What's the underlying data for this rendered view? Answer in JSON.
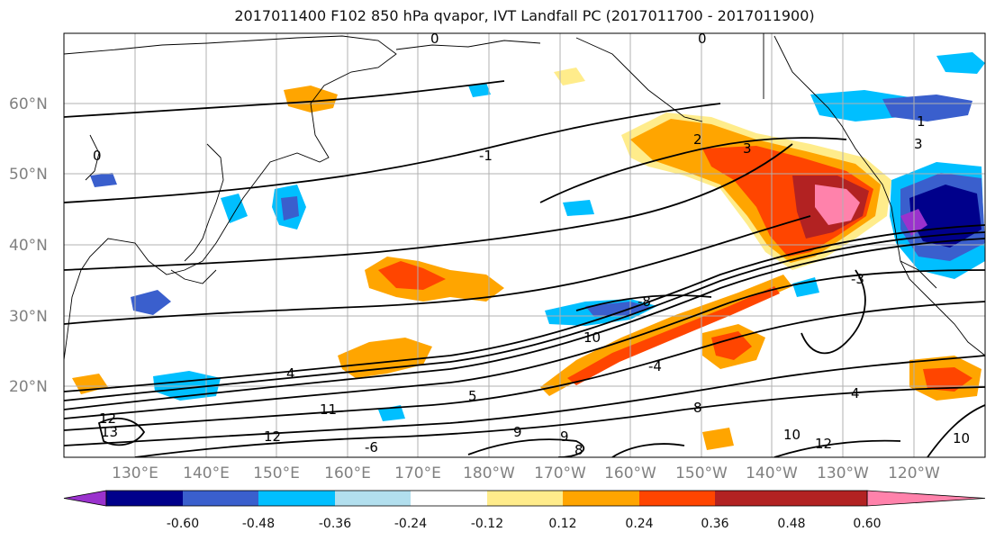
{
  "title": "2017011400 F102 850 hPa qvapor, IVT Landfall PC (2017011700 - 2017011900)",
  "map": {
    "lat_labels": [
      "60°N",
      "50°N",
      "40°N",
      "30°N",
      "20°N"
    ],
    "lon_labels": [
      "130°E",
      "140°E",
      "150°E",
      "160°E",
      "170°E",
      "180°W",
      "170°W",
      "160°W",
      "150°W",
      "140°W",
      "130°W",
      "120°W"
    ],
    "contour_labels": [
      "0",
      "0",
      "0",
      "-1",
      "1",
      "2",
      "3",
      "3",
      "-3",
      "4",
      "4",
      "5",
      "8",
      "8",
      "9",
      "9",
      "10",
      "10",
      "10",
      "11",
      "12",
      "12",
      "12",
      "13",
      "-8",
      "-4",
      "-6"
    ]
  },
  "colorbar": {
    "tick_labels": [
      "-0.60",
      "-0.48",
      "-0.36",
      "-0.24",
      "-0.12",
      "0.12",
      "0.24",
      "0.36",
      "0.48",
      "0.60"
    ],
    "colors": [
      "#9a32cd",
      "#00008b",
      "#3a5fcd",
      "#00bfff",
      "#b2dfee",
      "#ffffff",
      "#ffec8b",
      "#ffa500",
      "#ff4500",
      "#b22222",
      "#ff82ab"
    ]
  }
}
